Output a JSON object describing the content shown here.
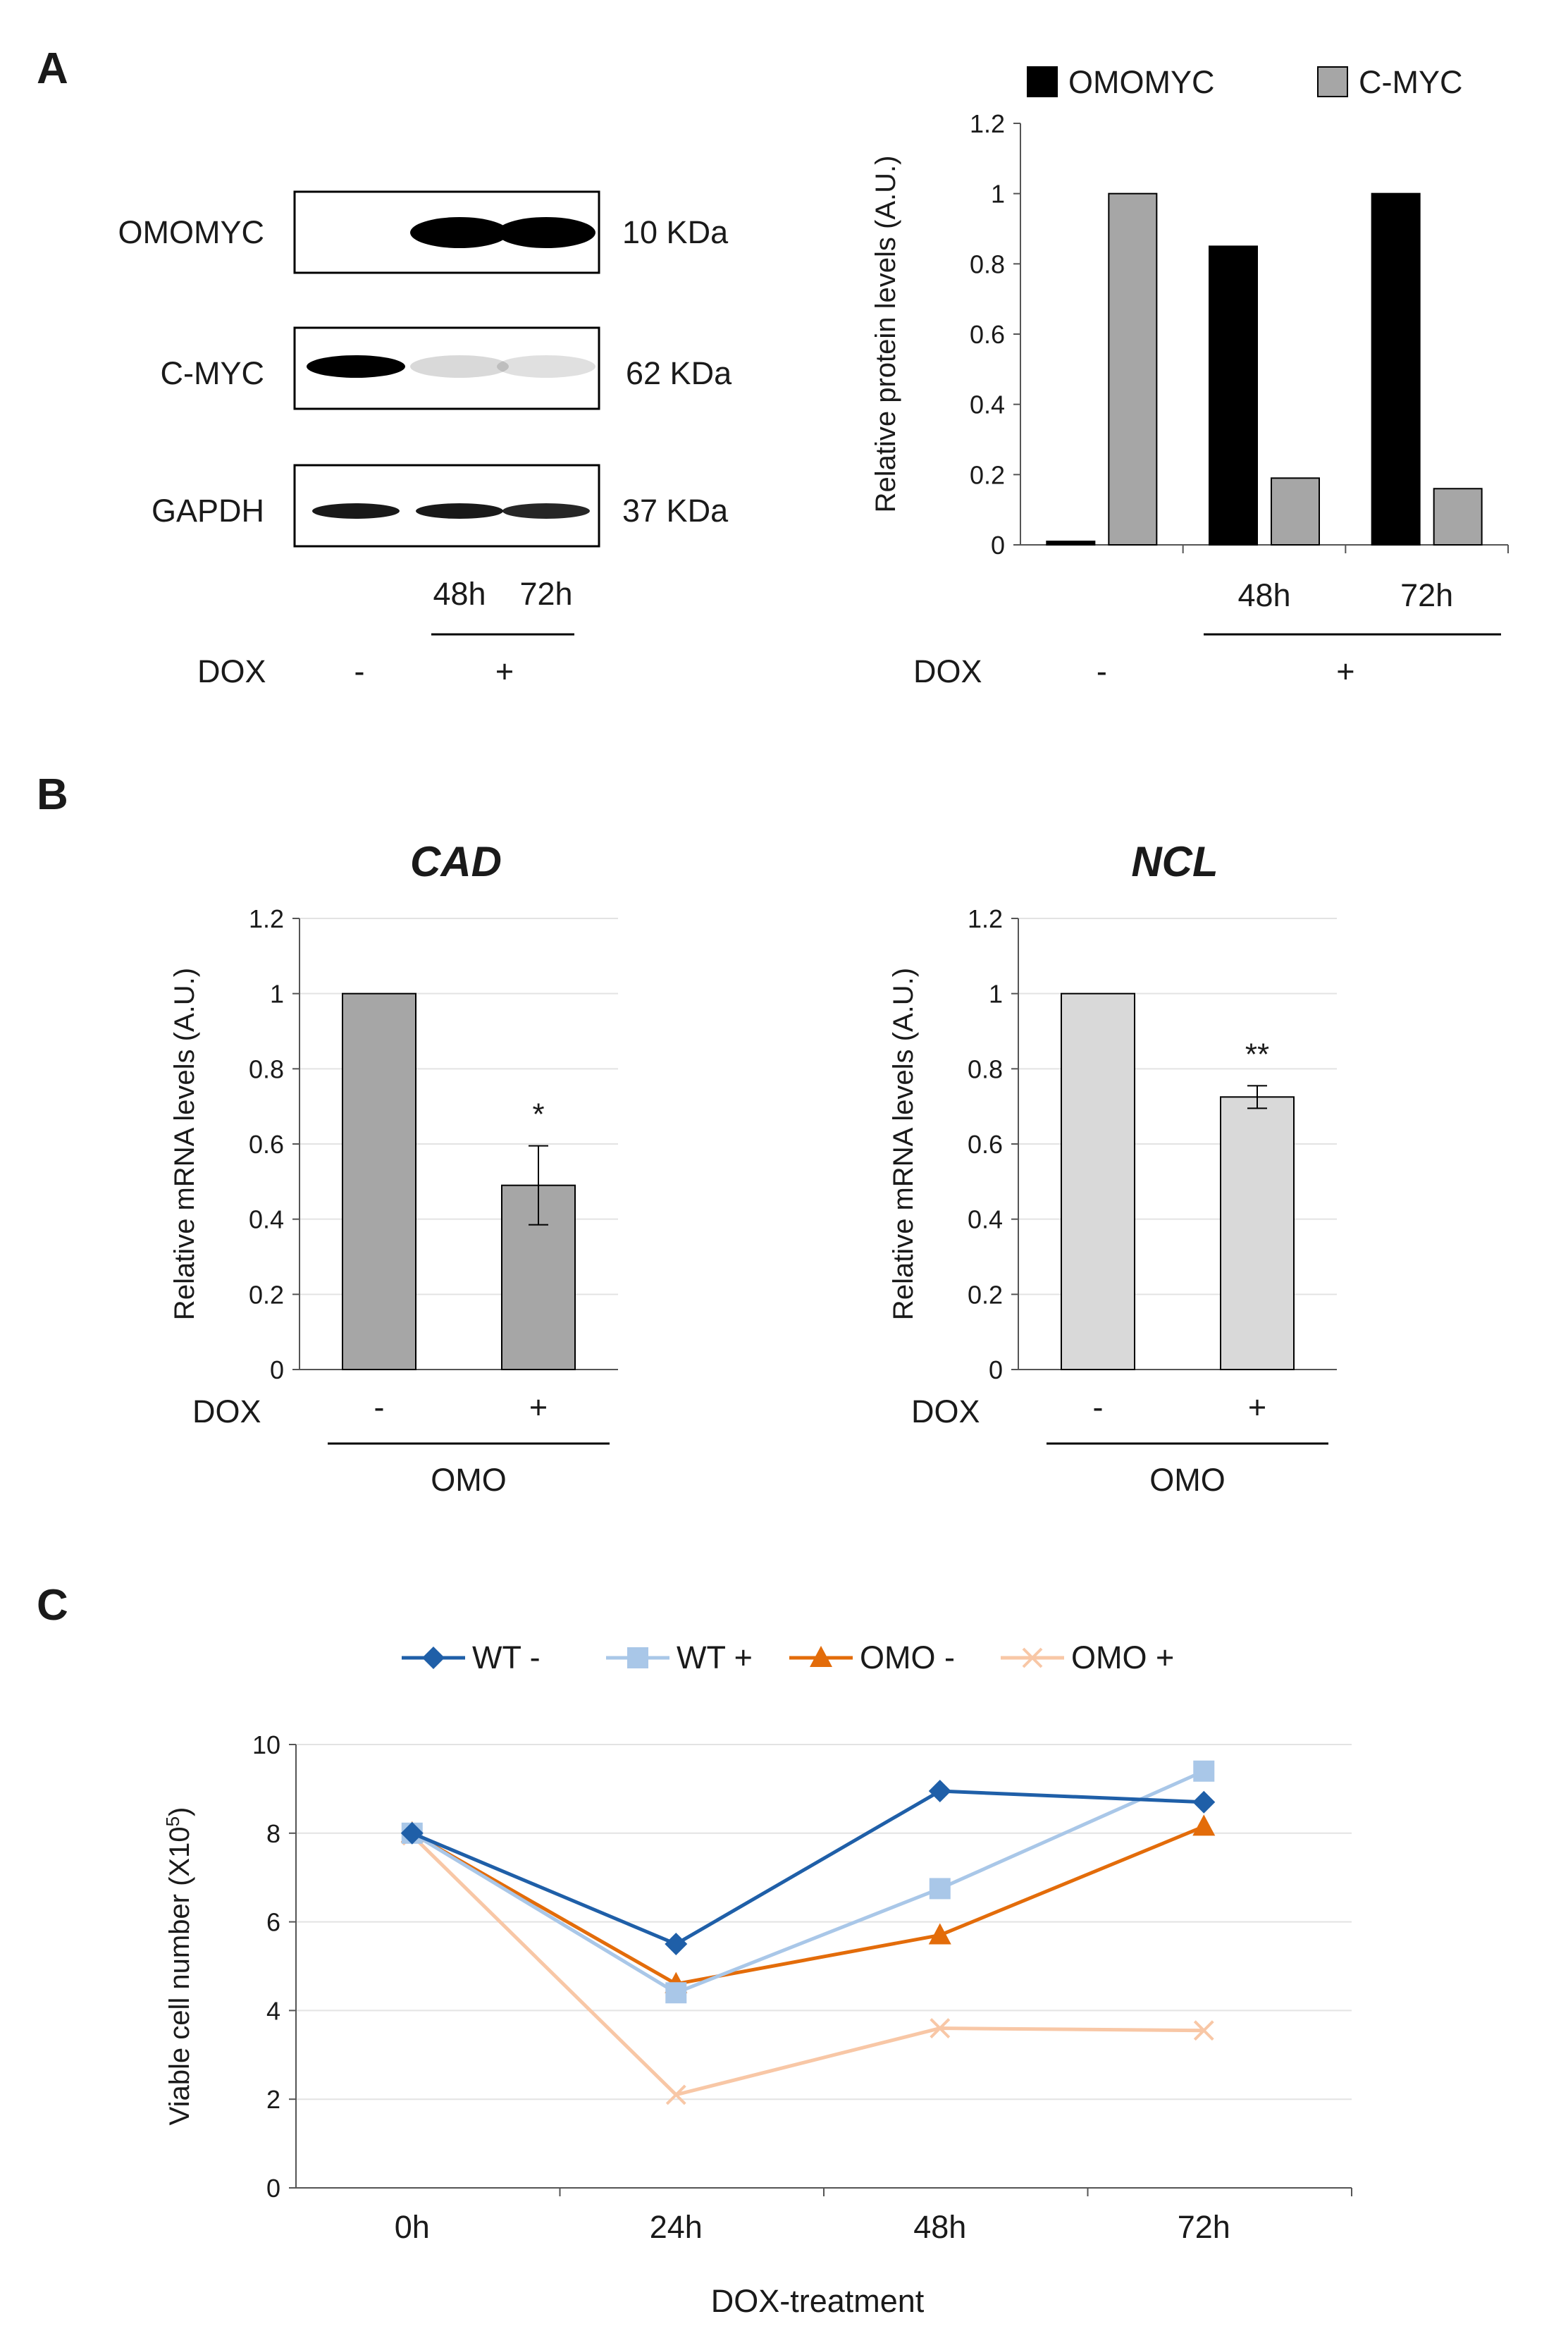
{
  "panel_labels": [
    "A",
    "B",
    "C"
  ],
  "blot": {
    "rows": [
      {
        "protein": "OMOMYC",
        "size": "10 KDa"
      },
      {
        "protein": "C-MYC",
        "size": "62 KDa"
      },
      {
        "protein": "GAPDH",
        "size": "37 KDa"
      }
    ],
    "lane_labels": [
      "48h",
      "72h"
    ],
    "dox_label": "DOX",
    "dox_minus": "-",
    "dox_plus": "+",
    "band_intensity": {
      "OMOMYC": [
        0.0,
        1.0,
        1.0
      ],
      "C-MYC": [
        1.0,
        0.15,
        0.12
      ],
      "GAPDH": [
        0.9,
        0.9,
        0.85
      ]
    }
  },
  "dox_label": "DOX",
  "omo_label": "OMO",
  "chart_data": [
    {
      "id": "A-right",
      "type": "bar",
      "title": "",
      "ylabel": "Relative protein levels (A.U.)",
      "ylim": [
        0,
        1.2
      ],
      "yticks": [
        "0",
        "0.2",
        "0.4",
        "0.6",
        "0.8",
        "1",
        "1.2"
      ],
      "categories": [
        "",
        "48h",
        "72h"
      ],
      "group_dox": [
        "-",
        "+"
      ],
      "legend": [
        "OMOMYC",
        "C-MYC"
      ],
      "legend_position": "top",
      "series": [
        {
          "name": "OMOMYC",
          "color": "#000000",
          "values": [
            0.01,
            0.85,
            1.0
          ]
        },
        {
          "name": "C-MYC",
          "color": "#a6a6a6",
          "values": [
            1.0,
            0.19,
            0.16
          ]
        }
      ]
    },
    {
      "id": "B-CAD",
      "type": "bar",
      "title": "CAD",
      "ylabel": "Relative mRNA levels (A.U.)",
      "ylim": [
        0,
        1.2
      ],
      "yticks": [
        "0",
        "0.2",
        "0.4",
        "0.6",
        "0.8",
        "1",
        "1.2"
      ],
      "categories": [
        "-",
        "+"
      ],
      "group_label": "OMO",
      "grid": true,
      "color": "#a6a6a6",
      "values": [
        1.0,
        0.49
      ],
      "errors": [
        0,
        0.105
      ],
      "significance": [
        "",
        "*"
      ]
    },
    {
      "id": "B-NCL",
      "type": "bar",
      "title": "NCL",
      "ylabel": "Relative mRNA levels (A.U.)",
      "ylim": [
        0,
        1.2
      ],
      "yticks": [
        "0",
        "0.2",
        "0.4",
        "0.6",
        "0.8",
        "1",
        "1.2"
      ],
      "categories": [
        "-",
        "+"
      ],
      "group_label": "OMO",
      "grid": true,
      "color": "#d9d9d9",
      "values": [
        1.0,
        0.725
      ],
      "errors": [
        0,
        0.03
      ],
      "significance": [
        "",
        "**"
      ]
    },
    {
      "id": "C",
      "type": "line",
      "title": "",
      "xlabel": "DOX-treatment",
      "ylabel": "Viable cell number (X10",
      "ylabel_sup": "5",
      "ylabel_end": ")",
      "ylim": [
        0,
        10
      ],
      "yticks": [
        "0",
        "2",
        "4",
        "6",
        "8",
        "10"
      ],
      "categories": [
        "0h",
        "24h",
        "48h",
        "72h"
      ],
      "grid": true,
      "legend_position": "top",
      "series": [
        {
          "name": "WT -",
          "color": "#1f5fa8",
          "marker": "diamond",
          "values": [
            8.0,
            5.5,
            8.95,
            8.7
          ]
        },
        {
          "name": "WT +",
          "color": "#a9c7e8",
          "marker": "square",
          "values": [
            8.0,
            4.4,
            6.75,
            9.4
          ]
        },
        {
          "name": "OMO -",
          "color": "#e36c0a",
          "marker": "triangle",
          "values": [
            8.0,
            4.6,
            5.7,
            8.15
          ]
        },
        {
          "name": "OMO +",
          "color": "#f8c7a6",
          "marker": "x",
          "values": [
            7.95,
            2.1,
            3.6,
            3.55
          ]
        }
      ]
    }
  ]
}
